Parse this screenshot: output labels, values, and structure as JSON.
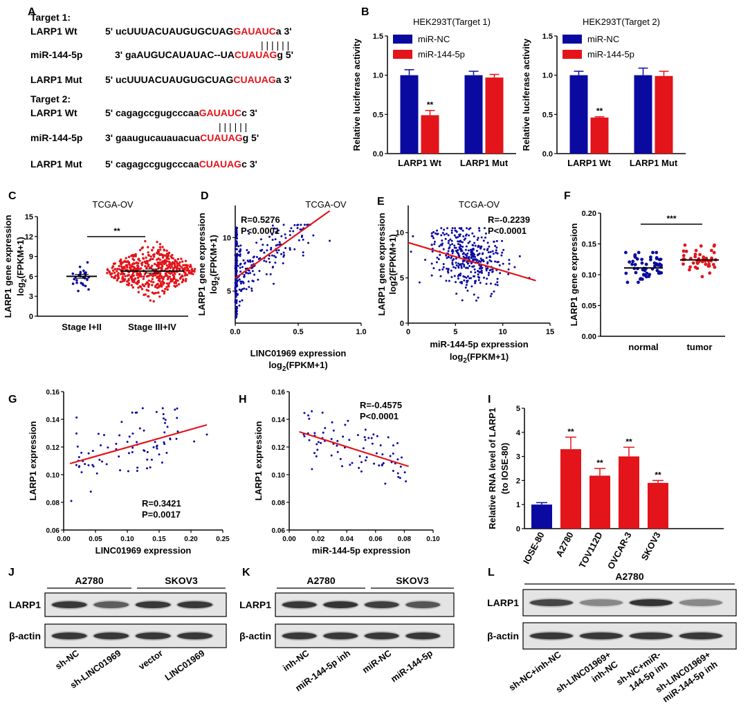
{
  "colors": {
    "blue": "#0a0aa0",
    "red": "#e3141a",
    "seq_red": "#e3141a"
  },
  "panel_letters": [
    "A",
    "B",
    "C",
    "D",
    "E",
    "F",
    "G",
    "H",
    "I",
    "J",
    "K",
    "L"
  ],
  "panel_a": {
    "target1_label": "Target 1:",
    "target2_label": "Target 2:",
    "rows1": [
      {
        "name": "LARP1 Wt",
        "prefix": "5' ucUUUACUAUGUGCUAG",
        "highlight": "GAUAUC",
        "suffix": "a 3'"
      },
      {
        "name": "miR-144-5p",
        "prefix": "3' gaAUGUCAUAUAC--UA",
        "highlight": "CUAUAG",
        "suffix": "g 5'"
      },
      {
        "name": "LARP1 Mut",
        "prefix": "5' ucUUUACUAUGUGCUAG",
        "highlight": "CUAUAG",
        "suffix": "a 3'"
      }
    ],
    "rows2": [
      {
        "name": "LARP1 Wt",
        "prefix": "5' cagagccgugcccaa",
        "highlight": "GAUAUC",
        "suffix": "c 3'"
      },
      {
        "name": "miR-144-5p",
        "prefix": "3' gaaugucauauacua",
        "highlight": "CUAUAG",
        "suffix": "g 5'"
      },
      {
        "name": "LARP1 Mut",
        "prefix": "5' cagagccgugcccaa",
        "highlight": "CUAUAG",
        "suffix": "c 3'"
      }
    ],
    "pair_bars": "| | | | | |"
  },
  "chart_data": [
    {
      "id": "B1",
      "type": "bar",
      "title": "HEK293T(Target 1)",
      "ylabel": "Relative luciferase activity",
      "ylim": [
        0,
        1.5
      ],
      "yticks": [
        "0.0",
        "0.5",
        "1.0",
        "1.5"
      ],
      "categories": [
        "LARP1 Wt",
        "LARP1 Mut"
      ],
      "legend": [
        "miR-NC",
        "miR-144-5p"
      ],
      "series": [
        {
          "name": "miR-NC",
          "values": [
            1.0,
            1.0
          ],
          "errors": [
            0.07,
            0.05
          ]
        },
        {
          "name": "miR-144-5p",
          "values": [
            0.49,
            0.97
          ],
          "errors": [
            0.06,
            0.04
          ]
        }
      ],
      "annotations": [
        "**",
        ""
      ]
    },
    {
      "id": "B2",
      "type": "bar",
      "title": "HEK293T(Target 2)",
      "ylabel": "Relative luciferase activity",
      "ylim": [
        0,
        1.5
      ],
      "yticks": [
        "0.0",
        "0.5",
        "1.0",
        "1.5"
      ],
      "categories": [
        "LARP1 Wt",
        "LARP1 Mut"
      ],
      "legend": [
        "miR-NC",
        "miR-144-5p"
      ],
      "series": [
        {
          "name": "miR-NC",
          "values": [
            1.0,
            1.0
          ],
          "errors": [
            0.05,
            0.09
          ]
        },
        {
          "name": "miR-144-5p",
          "values": [
            0.46,
            0.99
          ],
          "errors": [
            0.01,
            0.06
          ]
        }
      ],
      "annotations": [
        "**",
        ""
      ]
    },
    {
      "id": "C",
      "type": "scatter",
      "title": "TCGA-OV",
      "ylabel_line1": "LARP1 gene expression",
      "ylabel_line2": "log",
      "ylabel_sub": "2",
      "ylabel_tail": "(FPKM+1)",
      "ylim": [
        0,
        15
      ],
      "yticks": [
        "0",
        "3",
        "6",
        "9",
        "12",
        "15"
      ],
      "categories": [
        "Stage I+II",
        "Stage III+IV"
      ],
      "means": [
        6.0,
        6.8
      ],
      "significance": "**"
    },
    {
      "id": "D",
      "type": "scatter",
      "title": "TCGA-OV",
      "r_text": "R=0.5276",
      "p_text": "P<0.0001",
      "ylabel_line1": "LARP1 gene expression",
      "ylabel_line2": "log",
      "ylabel_sub": "2",
      "ylabel_tail": "(FPKM+1)",
      "xlabel_line1": "LINC01969 expression",
      "xlabel_line2": "log",
      "xlabel_sub": "2",
      "xlabel_tail": "(FPKM+1)",
      "xlim": [
        0,
        1.0
      ],
      "ylim": [
        2,
        13
      ],
      "xticks": [
        "0.0",
        "0.5",
        "1.0"
      ],
      "yticks": [
        "5",
        "10"
      ],
      "fit": {
        "x0": 0.0,
        "y0": 6.2,
        "x1": 0.75,
        "y1": 12.5
      }
    },
    {
      "id": "E",
      "type": "scatter",
      "title": "TCGA-OV",
      "r_text": "R=-0.2239",
      "p_text": "P<0.0001",
      "ylabel_line1": "LARP1 gene expression",
      "ylabel_line2": "log2(FPKM+1)",
      "xlabel_line1": "miR-144-5p  expression",
      "xlabel_line2": "log",
      "xlabel_sub": "2",
      "xlabel_tail": "(FPKM+1)",
      "xlim": [
        0,
        15
      ],
      "ylim": [
        0,
        13
      ],
      "xticks": [
        "0",
        "5",
        "10",
        "15"
      ],
      "yticks": [
        "0",
        "5",
        "10"
      ],
      "fit": {
        "x0": 0,
        "y0": 8.9,
        "x1": 13.5,
        "y1": 4.7
      }
    },
    {
      "id": "F",
      "type": "scatter",
      "ylabel": "LARP1 gene expression",
      "ylim": [
        0,
        0.2
      ],
      "yticks": [
        "0.00",
        "0.05",
        "0.10",
        "0.15",
        "0.20"
      ],
      "categories": [
        "normal",
        "tumor"
      ],
      "means": [
        0.111,
        0.124
      ],
      "significance": "***"
    },
    {
      "id": "G",
      "type": "scatter",
      "ylabel": "LARP1 expression",
      "xlabel": "LINC01969 expression",
      "r_text": "R=0.3421",
      "p_text": "P=0.0017",
      "xlim": [
        0,
        0.25
      ],
      "ylim": [
        0.06,
        0.16
      ],
      "xticks": [
        "0.00",
        "0.05",
        "0.10",
        "0.15",
        "0.20",
        "0.25"
      ],
      "yticks": [
        "0.06",
        "0.08",
        "0.10",
        "0.12",
        "0.14",
        "0.16"
      ],
      "fit": {
        "x0": 0.01,
        "y0": 0.108,
        "x1": 0.225,
        "y1": 0.136
      }
    },
    {
      "id": "H",
      "type": "scatter",
      "ylabel": "LARP1 expression",
      "xlabel": "miR-144-5p expression",
      "r_text": "R=-0.4575",
      "p_text": "P<0.0001",
      "xlim": [
        0,
        0.1
      ],
      "ylim": [
        0.06,
        0.16
      ],
      "xticks": [
        "0.00",
        "0.02",
        "0.04",
        "0.06",
        "0.08",
        "0.10"
      ],
      "yticks": [
        "0.06",
        "0.08",
        "0.10",
        "0.12",
        "0.14",
        "0.16"
      ],
      "fit": {
        "x0": 0.007,
        "y0": 0.131,
        "x1": 0.083,
        "y1": 0.106
      }
    },
    {
      "id": "I",
      "type": "bar",
      "ylabel_line1": "Relative RNA level of LARP1",
      "ylabel_line2": "(to IOSE-80)",
      "ylim": [
        0,
        5
      ],
      "yticks": [
        "0",
        "1",
        "2",
        "3",
        "4",
        "5"
      ],
      "categories": [
        "IOSE-80",
        "A2780",
        "TOV112D",
        "OVCAR-3",
        "SKOV3"
      ],
      "values": [
        1.0,
        3.3,
        2.2,
        3.0,
        1.9
      ],
      "errors": [
        0.08,
        0.5,
        0.3,
        0.38,
        0.1
      ],
      "annotations": [
        "",
        "**",
        "**",
        "**",
        "**"
      ]
    }
  ],
  "blot_j": {
    "groups": [
      "A2780",
      "SKOV3"
    ],
    "rows": [
      "LARP1",
      "β-actin"
    ],
    "lanes": [
      "sh-NC",
      "sh-LINC01969",
      "vector",
      "LINC01969"
    ]
  },
  "blot_k": {
    "groups": [
      "A2780",
      "SKOV3"
    ],
    "rows": [
      "LARP1",
      "β-actin"
    ],
    "lanes": [
      "inh-NC",
      "miR-144-5p inh",
      "miR-NC",
      "miR-144-5p"
    ]
  },
  "blot_l": {
    "groups": [
      "A2780"
    ],
    "rows": [
      "LARP1",
      "β-actin"
    ],
    "lanes": [
      {
        "line1": "sh-NC+inh-NC",
        "line2": ""
      },
      {
        "line1": "sh-LINC01969+",
        "line2": "inh-NC"
      },
      {
        "line1": "sh-NC+miR-",
        "line2": "144-5p inh"
      },
      {
        "line1": "sh-LINC01969+",
        "line2": "miR-144-5p inh"
      }
    ]
  }
}
